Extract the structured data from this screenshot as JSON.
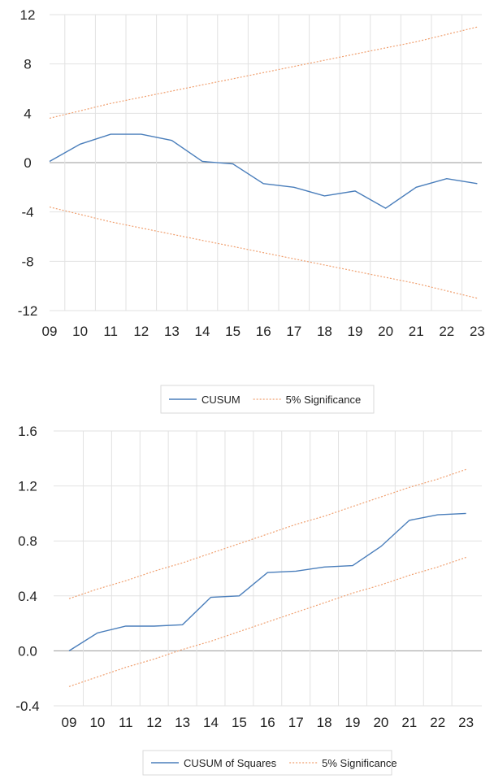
{
  "chart_data": [
    {
      "type": "line",
      "categories": [
        "09",
        "10",
        "11",
        "12",
        "13",
        "14",
        "15",
        "16",
        "17",
        "18",
        "19",
        "20",
        "21",
        "22",
        "23"
      ],
      "y_ticks": [
        "12",
        "8",
        "4",
        "0",
        "-4",
        "-8",
        "-12"
      ],
      "ylim": [
        -12,
        12
      ],
      "grid": true,
      "legend_position": "bottom",
      "series": [
        {
          "name": "CUSUM",
          "color": "#4a7ebb",
          "style": "solid",
          "values": [
            0.1,
            1.5,
            2.3,
            2.3,
            1.8,
            0.1,
            -0.1,
            -1.7,
            -2.0,
            -2.7,
            -2.3,
            -3.7,
            -2.0,
            -1.3,
            -1.7
          ]
        },
        {
          "name": "5% Significance",
          "color": "#f0a070",
          "style": "dotted",
          "values": [
            3.6,
            4.2,
            4.8,
            5.3,
            5.8,
            6.3,
            6.8,
            7.3,
            7.8,
            8.3,
            8.8,
            9.3,
            9.8,
            10.4,
            11.0
          ]
        },
        {
          "name": "",
          "color": "#f0a070",
          "style": "dotted",
          "values": [
            -3.6,
            -4.2,
            -4.8,
            -5.3,
            -5.8,
            -6.3,
            -6.8,
            -7.3,
            -7.8,
            -8.3,
            -8.8,
            -9.3,
            -9.8,
            -10.4,
            -11.0
          ]
        }
      ]
    },
    {
      "type": "line",
      "categories": [
        "09",
        "10",
        "11",
        "12",
        "13",
        "14",
        "15",
        "16",
        "17",
        "18",
        "19",
        "20",
        "21",
        "22",
        "23"
      ],
      "y_ticks": [
        "1.6",
        "1.2",
        "0.8",
        "0.4",
        "0.0",
        "-0.4"
      ],
      "ylim": [
        -0.4,
        1.6
      ],
      "grid": true,
      "legend_position": "bottom",
      "series": [
        {
          "name": "CUSUM of Squares",
          "color": "#4a7ebb",
          "style": "solid",
          "values": [
            0.0,
            0.13,
            0.18,
            0.18,
            0.19,
            0.39,
            0.4,
            0.57,
            0.58,
            0.61,
            0.62,
            0.76,
            0.95,
            0.99,
            1.0
          ]
        },
        {
          "name": "5% Significance",
          "color": "#f0a070",
          "style": "dotted",
          "values": [
            0.38,
            0.45,
            0.51,
            0.58,
            0.64,
            0.71,
            0.78,
            0.85,
            0.92,
            0.98,
            1.05,
            1.12,
            1.19,
            1.25,
            1.32
          ]
        },
        {
          "name": "",
          "color": "#f0a070",
          "style": "dotted",
          "values": [
            -0.26,
            -0.19,
            -0.12,
            -0.06,
            0.01,
            0.07,
            0.14,
            0.21,
            0.28,
            0.35,
            0.42,
            0.48,
            0.55,
            0.61,
            0.68
          ]
        }
      ]
    }
  ]
}
